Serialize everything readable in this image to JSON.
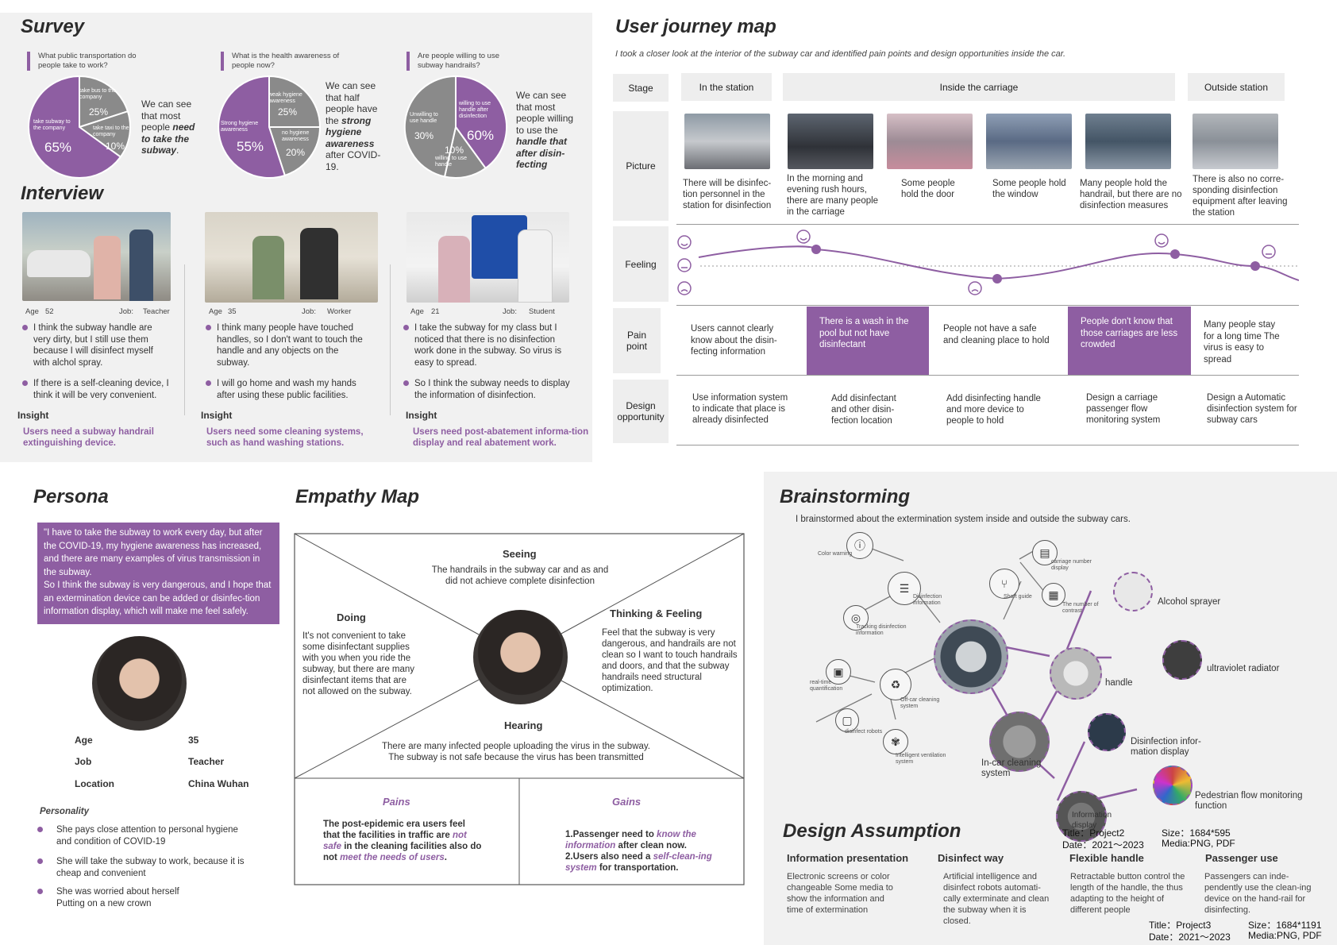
{
  "survey": {
    "title": "Survey",
    "questions": [
      {
        "q": "What public transportation do people take to work?",
        "cap_parts": [
          "We can see that most people ",
          "need to take the subway",
          "."
        ],
        "slices": [
          {
            "label": "take subway to the company",
            "pct": "65%"
          },
          {
            "label": "take bus to the company",
            "pct": "25%"
          },
          {
            "label": "take taxi to the company",
            "pct": "10%"
          }
        ]
      },
      {
        "q": "What is the health awareness of people now?",
        "cap_parts": [
          "We can see that half people have the ",
          "strong hygiene awareness",
          " after COVID-19."
        ],
        "slices": [
          {
            "label": "Strong hygiene awareness",
            "pct": "55%"
          },
          {
            "label": "weak hygiene awareness",
            "pct": "25%"
          },
          {
            "label": "no hygiene awareness",
            "pct": "20%"
          }
        ]
      },
      {
        "q": "Are people willing to use subway handrails?",
        "cap_parts": [
          "We can see that most people willing to use the ",
          "handle that after disin-fecting",
          ""
        ],
        "slices": [
          {
            "label": "willing to use handle after disinfection",
            "pct": "60%"
          },
          {
            "label": "Unwilling to use handle",
            "pct": "30%"
          },
          {
            "label": "willing to use handle",
            "pct": "10%"
          }
        ]
      }
    ]
  },
  "interview": {
    "title": "Interview",
    "people": [
      {
        "age_label": "Age",
        "age": "52",
        "job_label": "Job:",
        "job": "Teacher",
        "points": [
          "I think the subway handle are very dirty, but I still use them because I will disinfect myself with alchol spray.",
          "If there is a self-cleaning device, I think it will be very convenient."
        ],
        "insight_label": "Insight",
        "insight": "Users need a subway handrail extinguishing device."
      },
      {
        "age_label": "Age",
        "age": "35",
        "job_label": "Job:",
        "job": "Worker",
        "points": [
          "I think many people have touched handles, so I don't want to touch the handle and any objects on the subway.",
          "I will go home and wash my hands after using these public facilities."
        ],
        "insight_label": "Insight",
        "insight": "Users need some cleaning systems, such as hand washing stations."
      },
      {
        "age_label": "Age",
        "age": "21",
        "job_label": "Job:",
        "job": "Student",
        "points": [
          "I take the subway for my class but I noticed that there is no disinfection work done in the subway. So virus is easy to spread.",
          "So I think the subway needs to display the information of disinfection."
        ],
        "insight_label": "Insight",
        "insight": "Users need post-abatement informa-tion display and real abatement work."
      }
    ]
  },
  "journey": {
    "title": "User journey map",
    "subtitle": "I took a closer look at the interior of the subway car and identified pain points and design opportunities inside the car.",
    "row_labels": {
      "stage": "Stage",
      "picture": "Picture",
      "feeling": "Feeling",
      "pain": "Pain point",
      "design": "Design opportunity"
    },
    "stages": [
      "In the station",
      "Inside the carriage",
      "Outside station"
    ],
    "pictures": [
      "There will be disinfec-tion personnel in the station for disinfection",
      "In the morning and evening rush hours, there are many people in the carriage",
      "Some people hold the door",
      "Some people hold the window",
      "Many people hold the handrail, but there are no disinfection measures",
      "There is also no corre-sponding disinfection equipment after leaving the station"
    ],
    "pains": [
      "Users cannot clearly know about the disin-fecting information",
      "There is a wash in the pool but not have disinfectant",
      "People not have a safe and cleaning place to hold",
      "People don't know that those carriages are less crowded",
      "Many people stay for a long time The virus is easy to spread"
    ],
    "designs": [
      "Use information system to indicate that place is already disinfected",
      "Add disinfectant and other disin-fection location",
      "Add disinfecting handle and more device to people to hold",
      "Design a carriage passenger flow monitoring system",
      "Design a Automatic disinfection system for subway cars"
    ]
  },
  "persona": {
    "title": "Persona",
    "quote": "\"I have to take the subway to work every day, but after the COVID-19, my hygiene awareness has increased, and there are many examples of virus transmission in the subway.\n So I think the subway is very dangerous, and I hope that an extermination device can be added or disinfec-tion information display, which will make me feel safely.",
    "fields": [
      {
        "k": "Age",
        "v": "35"
      },
      {
        "k": "Job",
        "v": "Teacher"
      },
      {
        "k": "Location",
        "v": "China Wuhan"
      }
    ],
    "personality_label": "Personality",
    "personality": [
      "She pays close attention to personal hygiene and condition of COVID-19",
      "She will take the subway to work, because it is cheap and convenient",
      "She was worried about herself Putting on a new crown"
    ]
  },
  "empathy": {
    "title": "Empathy Map",
    "seeing_h": "Seeing",
    "seeing": "The handrails in the subway car and as and did not achieve complete disinfection",
    "doing_h": "Doing",
    "doing": "It's not convenient to take some disinfectant supplies with you when you ride the subway, but there are many disinfectant items that are not allowed on the subway.",
    "thinking_h": "Thinking & Feeling",
    "thinking": "Feel that the subway is very dangerous, and handrails are not clean so I want to touch handrails and doors, and that the subway handrails need structural optimization.",
    "hearing_h": "Hearing",
    "hearing": "There are many infected people uploading the virus in the subway. The subway is not safe because the virus has been transmitted",
    "pains_h": "Pains",
    "pains_parts": [
      "The post-epidemic era users feel that the facilities in traffic are ",
      "not safe",
      " in the cleaning facilities also do not ",
      "meet the needs of users",
      "."
    ],
    "gains_h": "Gains",
    "gains_parts": [
      "1.Passenger need to ",
      "know the information",
      " after clean now.\n2.Users also need a ",
      "self-clean-ing system",
      " for transportation."
    ]
  },
  "brainstorm": {
    "title": "Brainstorming",
    "subtitle": "I brainstormed about the extermination system inside and outside the subway cars.",
    "small_labels": {
      "color_warning": "Color warning",
      "disinfection_info": "Disinfection information",
      "tracking": "Tracking disinfection information",
      "carriage_number": "carriage number display",
      "short_guide": "Short guide",
      "contrast": "The number of contrast",
      "realtime": "real-time quantification",
      "offcar": "Off-car cleaning system",
      "robots": "disinfect robots",
      "ventilation": "Intelligent ventilation system"
    },
    "big_labels": {
      "alcohol": "Alcohol sprayer",
      "uv": "ultraviolet radiator",
      "handle": "handle",
      "infodisplay": "Disinfection infor-mation display",
      "pedestrian": "Pedestrian flow monitoring function",
      "incar": "In-car cleaning system",
      "info": "Information display"
    },
    "stamp1": {
      "title": "Title：Project2",
      "size": "Size：1684*595",
      "date": "Date：2021～2023",
      "media": "Media:PNG, PDF"
    }
  },
  "assumption": {
    "title": "Design Assumption",
    "cols": [
      {
        "h": "Information presentation",
        "t": "Electronic screens or color changeable Some media to show the information and time of extermination"
      },
      {
        "h": "Disinfect way",
        "t": "Artificial intelligence and disinfect robots automati-cally exterminate and clean the subway when it is closed."
      },
      {
        "h": "Flexible handle",
        "t": "Retractable button control the length of the handle, the thus adapting to the height of different people"
      },
      {
        "h": "Passenger use",
        "t": "Passengers can inde-pendently use the clean-ing device on the hand-rail for disinfecting."
      }
    ],
    "stamp2": {
      "title": "Title：Project3",
      "size": "Size：1684*1191",
      "date": "Date：2021～2023",
      "media": "Media:PNG, PDF"
    }
  }
}
